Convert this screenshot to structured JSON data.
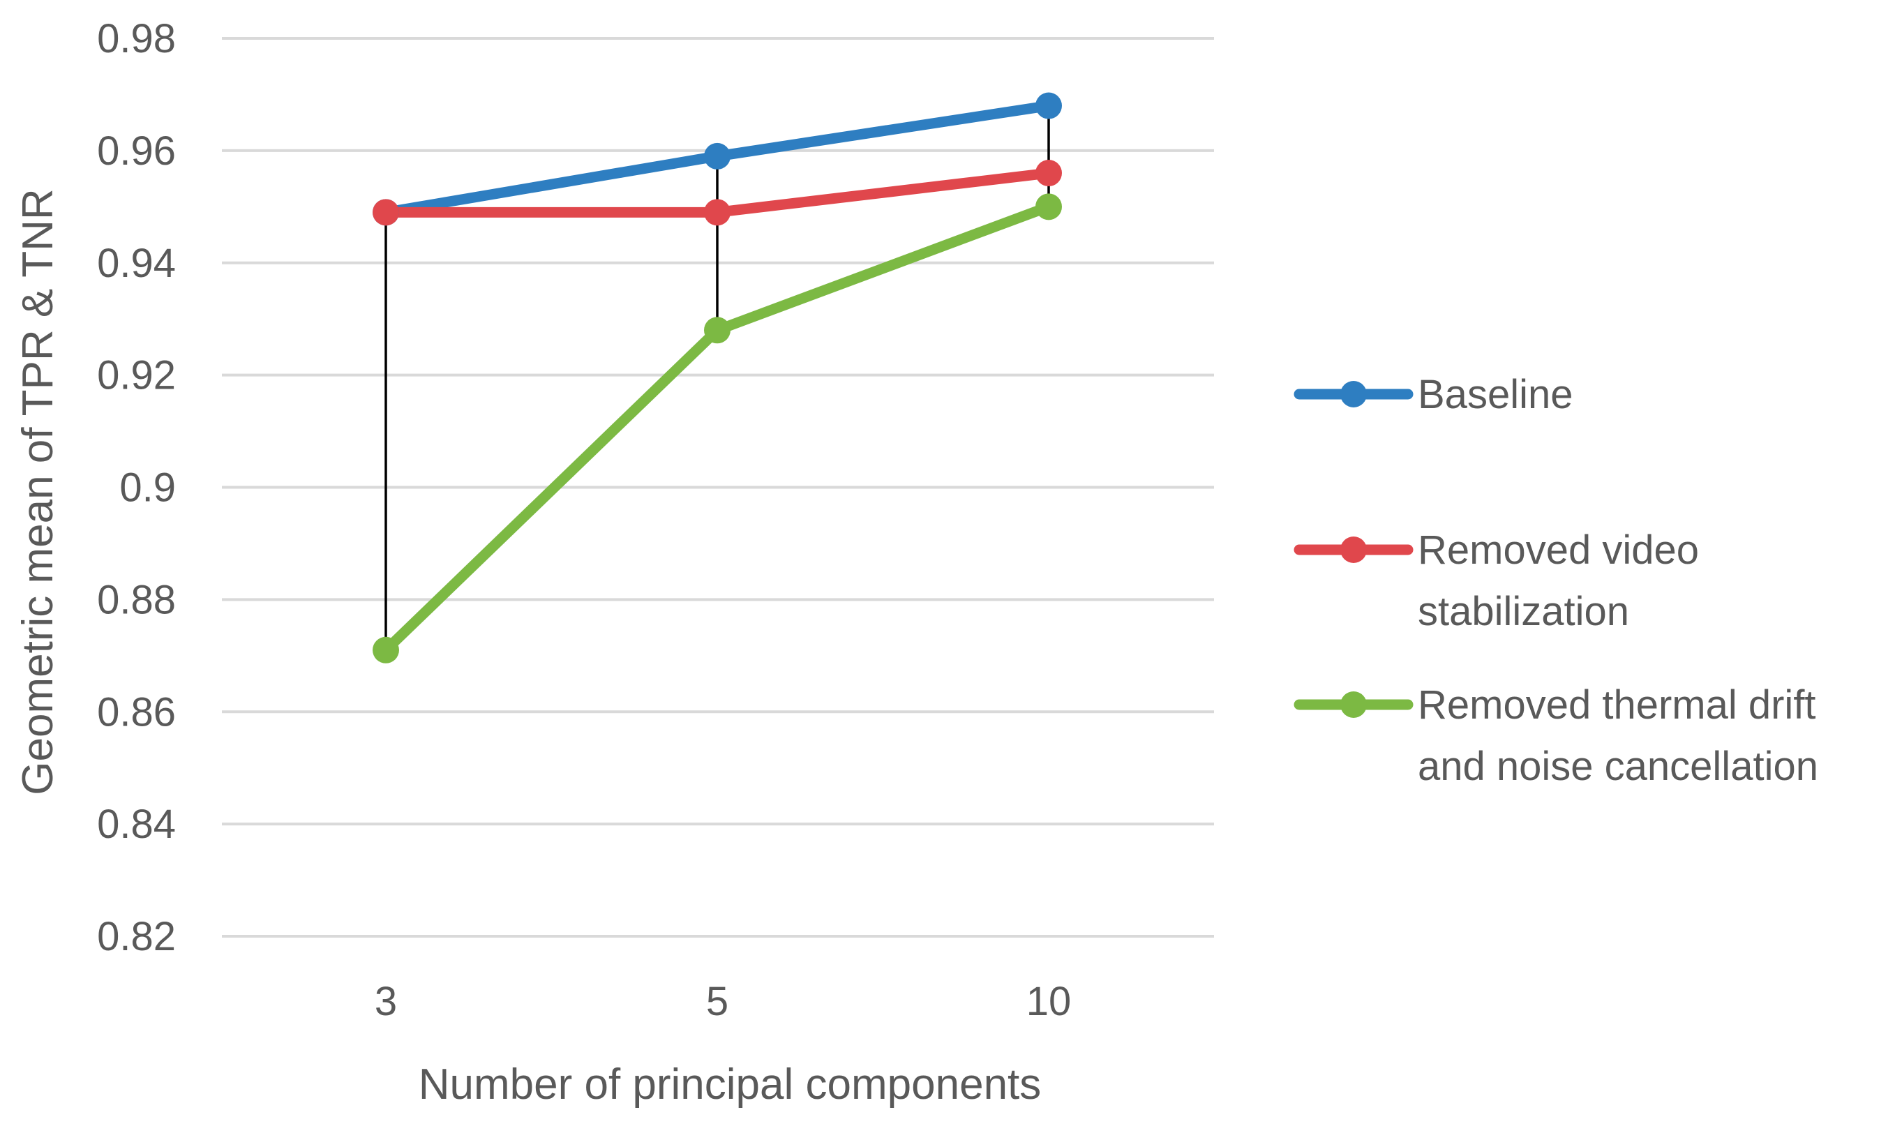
{
  "chart_data": {
    "type": "line",
    "title": "",
    "xlabel": "Number of principal components",
    "ylabel": "Geometric mean of TPR & TNR",
    "categories": [
      "3",
      "5",
      "10"
    ],
    "ylim": [
      0.82,
      0.98
    ],
    "yticks": [
      "0.82",
      "0.84",
      "0.86",
      "0.88",
      "0.9",
      "0.92",
      "0.94",
      "0.96",
      "0.98"
    ],
    "grid": true,
    "drop_lines": true,
    "legend_position": "right",
    "series": [
      {
        "name": "Baseline",
        "legend_lines": [
          "Baseline"
        ],
        "color": "#2E7EC1",
        "values": [
          0.949,
          0.959,
          0.968
        ]
      },
      {
        "name": "Removed video stabilization",
        "legend_lines": [
          "Removed video",
          "stabilization"
        ],
        "color": "#E0474C",
        "values": [
          0.949,
          0.949,
          0.956
        ]
      },
      {
        "name": "Removed thermal drift and noise cancellation",
        "legend_lines": [
          "Removed thermal drift",
          "and noise cancellation"
        ],
        "color": "#7CB943",
        "values": [
          0.871,
          0.928,
          0.95
        ]
      }
    ]
  }
}
